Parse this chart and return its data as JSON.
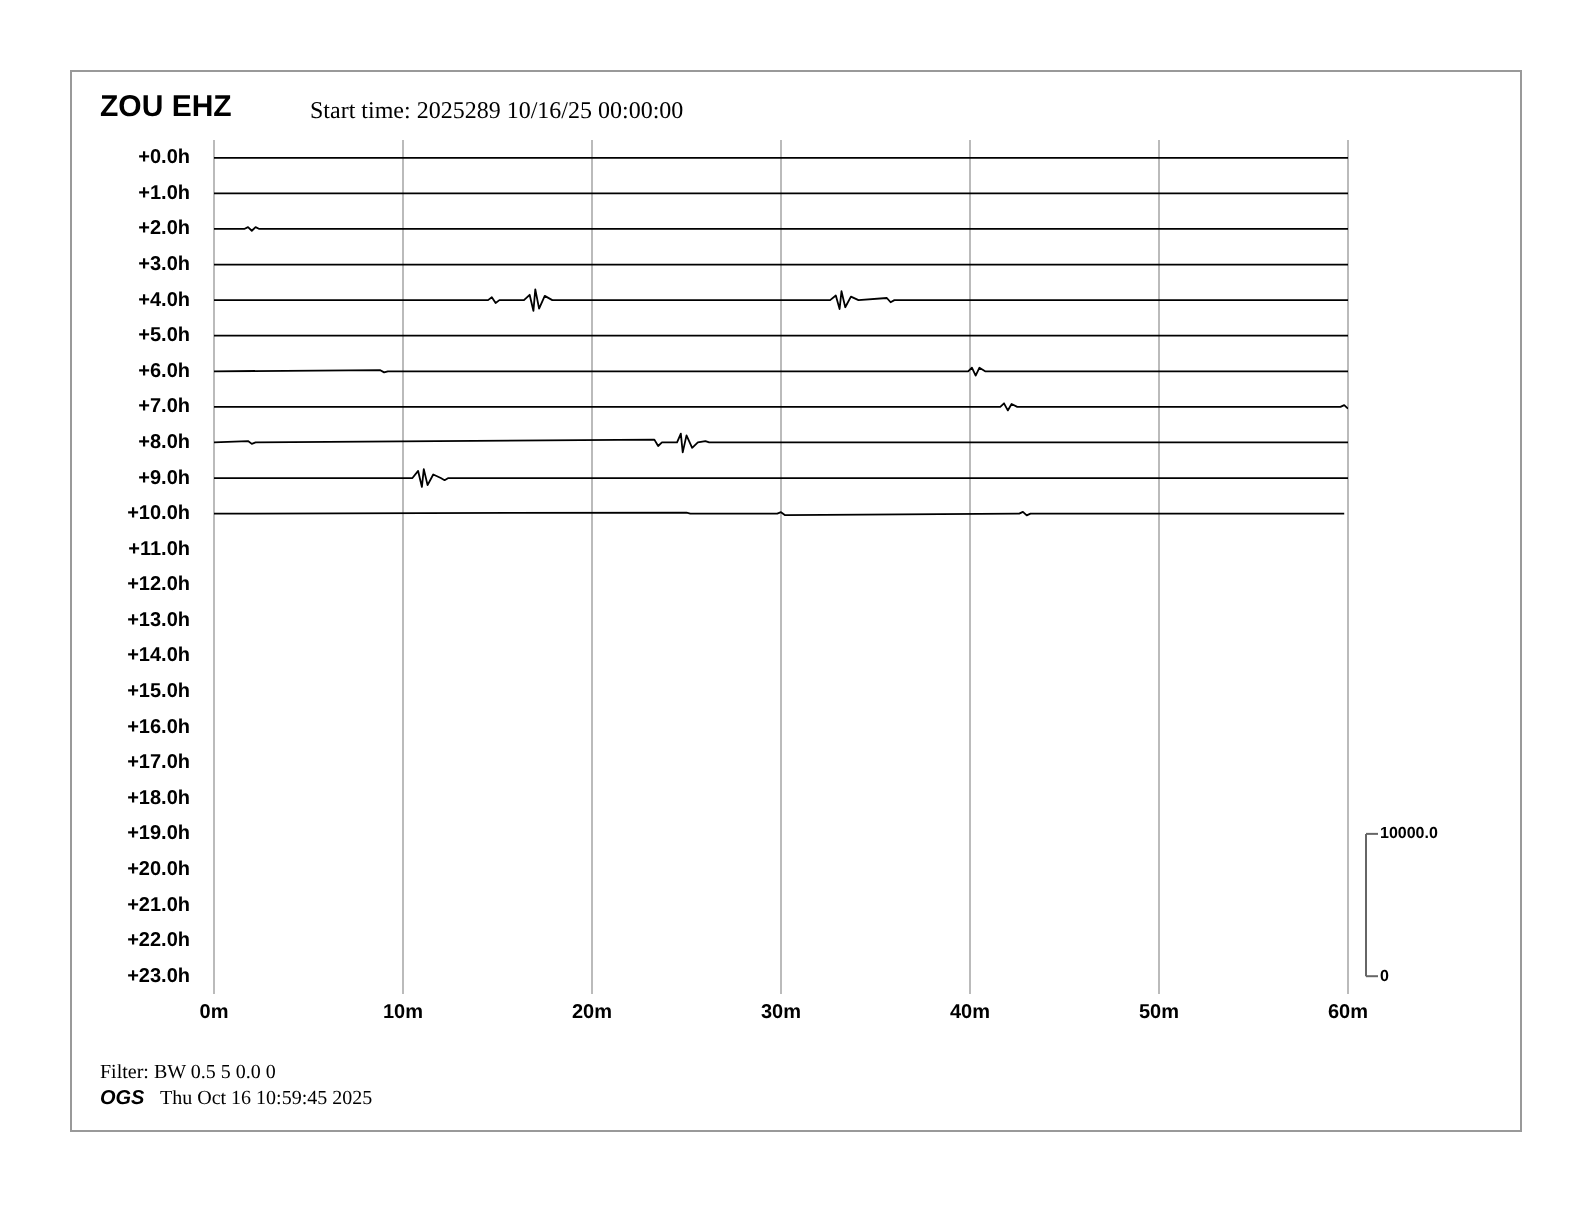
{
  "chart_data": {
    "type": "line",
    "title": "ZOU EHZ",
    "subtitle": "Start time: 2025289 10/16/25 00:00:00",
    "annotations": [
      "Filter: BW 0.5 5 0.0 0",
      "OGS",
      "Thu Oct 16 10:59:45 2025"
    ],
    "xlim": [
      0,
      60
    ],
    "xticks": [
      {
        "value": 0,
        "label": "0m"
      },
      {
        "value": 10,
        "label": "10m"
      },
      {
        "value": 20,
        "label": "20m"
      },
      {
        "value": 30,
        "label": "30m"
      },
      {
        "value": 40,
        "label": "40m"
      },
      {
        "value": 50,
        "label": "50m"
      },
      {
        "value": 60,
        "label": "60m"
      }
    ],
    "ylim": [
      23.5,
      -0.5
    ],
    "yticks": [
      {
        "value": 0,
        "label": "+0.0h"
      },
      {
        "value": 1,
        "label": "+1.0h"
      },
      {
        "value": 2,
        "label": "+2.0h"
      },
      {
        "value": 3,
        "label": "+3.0h"
      },
      {
        "value": 4,
        "label": "+4.0h"
      },
      {
        "value": 5,
        "label": "+5.0h"
      },
      {
        "value": 6,
        "label": "+6.0h"
      },
      {
        "value": 7,
        "label": "+7.0h"
      },
      {
        "value": 8,
        "label": "+8.0h"
      },
      {
        "value": 9,
        "label": "+9.0h"
      },
      {
        "value": 10,
        "label": "+10.0h"
      },
      {
        "value": 11,
        "label": "+11.0h"
      },
      {
        "value": 12,
        "label": "+12.0h"
      },
      {
        "value": 13,
        "label": "+13.0h"
      },
      {
        "value": 14,
        "label": "+14.0h"
      },
      {
        "value": 15,
        "label": "+15.0h"
      },
      {
        "value": 16,
        "label": "+16.0h"
      },
      {
        "value": 17,
        "label": "+17.0h"
      },
      {
        "value": 18,
        "label": "+18.0h"
      },
      {
        "value": 19,
        "label": "+19.0h"
      },
      {
        "value": 20,
        "label": "+20.0h"
      },
      {
        "value": 21,
        "label": "+21.0h"
      },
      {
        "value": 22,
        "label": "+22.0h"
      },
      {
        "value": 23,
        "label": "+23.0h"
      }
    ],
    "y2lim": [
      -1250,
      58750
    ],
    "y2ticks": [
      {
        "value": 0,
        "label": "0"
      },
      {
        "value": 10000,
        "label": "10000.0"
      }
    ],
    "grid": "x",
    "legend": false,
    "marker": "none",
    "line_style": "solid",
    "series": [
      {
        "color": "#000000",
        "x": [
          0,
          60
        ],
        "values": [
          0,
          0
        ]
      },
      {
        "color": "#000000",
        "x": [
          0,
          60
        ],
        "values": [
          1,
          1
        ]
      },
      {
        "color": "#000000",
        "x": [
          0,
          1.6,
          1.8,
          2.0,
          2.2,
          2.4,
          60
        ],
        "values": [
          2,
          2,
          1.95,
          2.05,
          1.95,
          2,
          2
        ]
      },
      {
        "color": "#000000",
        "x": [
          0,
          60
        ],
        "values": [
          3,
          3
        ]
      },
      {
        "color": "#000000",
        "x": [
          0,
          14.5,
          14.7,
          14.9,
          15.1,
          16.4,
          16.7,
          16.9,
          17.0,
          17.2,
          17.5,
          17.9,
          32.6,
          32.9,
          33.1,
          33.2,
          33.4,
          33.7,
          34.1,
          35.6,
          35.8,
          36.0,
          60
        ],
        "values": [
          4,
          4,
          3.92,
          4.08,
          4,
          4,
          3.85,
          4.3,
          3.7,
          4.24,
          3.88,
          4,
          4,
          3.87,
          4.25,
          3.75,
          4.2,
          3.9,
          4,
          3.94,
          4.06,
          4,
          4
        ]
      },
      {
        "color": "#000000",
        "x": [
          0,
          60
        ],
        "values": [
          5,
          5
        ]
      },
      {
        "color": "#000000",
        "x": [
          0,
          8.8,
          9.0,
          9.2,
          39.9,
          40.1,
          40.3,
          40.5,
          40.8,
          60
        ],
        "values": [
          6,
          5.97,
          6.03,
          6,
          6,
          5.9,
          6.12,
          5.9,
          6,
          6
        ]
      },
      {
        "color": "#000000",
        "x": [
          0,
          41.6,
          41.8,
          42.0,
          42.2,
          42.5,
          59.6,
          59.8,
          60
        ],
        "values": [
          7,
          7,
          6.9,
          7.1,
          6.92,
          7,
          7,
          6.95,
          7.05
        ]
      },
      {
        "color": "#000000",
        "x": [
          0,
          1.8,
          2.0,
          2.2,
          23.3,
          23.5,
          23.7,
          24.5,
          24.7,
          24.8,
          25.0,
          25.3,
          25.6,
          26.0,
          26.2,
          60
        ],
        "values": [
          8,
          7.96,
          8.04,
          8,
          7.92,
          8.1,
          8,
          8,
          7.75,
          8.28,
          7.8,
          8.15,
          8,
          7.96,
          8,
          8
        ]
      },
      {
        "color": "#000000",
        "x": [
          0,
          10.5,
          10.8,
          11.0,
          11.1,
          11.3,
          11.6,
          12.0,
          12.2,
          12.4,
          60
        ],
        "values": [
          9,
          9,
          8.8,
          9.25,
          8.75,
          9.2,
          8.9,
          9,
          9.06,
          9,
          9
        ]
      },
      {
        "color": "#000000",
        "x": [
          0,
          25.0,
          25.2,
          29.8,
          30.0,
          30.2,
          42.6,
          42.8,
          43.0,
          43.2,
          59.8
        ],
        "values": [
          10,
          9.97,
          10,
          10,
          9.96,
          10.04,
          10,
          9.95,
          10.05,
          10,
          10
        ]
      }
    ]
  }
}
